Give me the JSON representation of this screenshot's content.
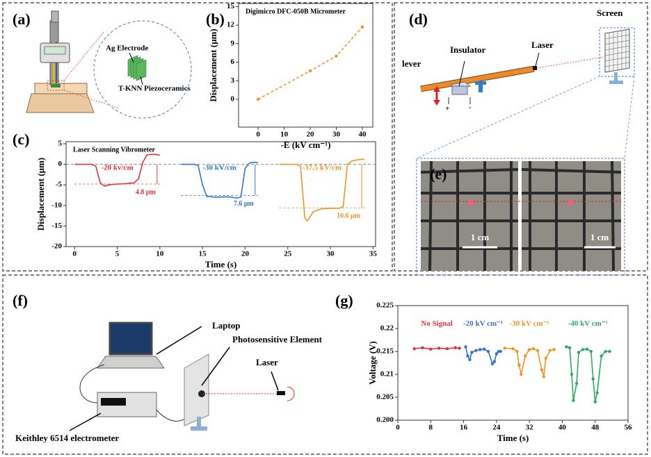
{
  "panel_labels": [
    "(a)",
    "(b)",
    "(c)",
    "(d)",
    "(e)",
    "(f)",
    "(g)"
  ],
  "labels": {
    "ag_electrode": "Ag Electrode",
    "tknn": "T-KNN Piezoceramics",
    "lever": "lever",
    "insulator": "Insulator",
    "laser_d": "Laser",
    "screen": "Screen",
    "plus": "+",
    "minus": "-",
    "scale_left": "1 cm",
    "scale_right": "1 cm",
    "laptop": "Laptop",
    "photo": "Photosensitive Element",
    "laser_f": "Laser",
    "keithley": "Keithley 6514 electrometer"
  },
  "chart_data": [
    {
      "type": "line",
      "title": "Digimicro DFC-050B Micrometer",
      "x_label": "-E (kV cm⁻¹)",
      "y_label": "Displacement (μm)",
      "x": [
        0,
        20,
        30,
        40
      ],
      "values": [
        0,
        4.6,
        7,
        11.7
      ],
      "color": "#f0922b",
      "line_style": "dashed",
      "markers": true,
      "xlim": [
        -7.5,
        44
      ],
      "xticks": [
        0,
        10,
        20,
        30,
        40
      ],
      "ylim": [
        -4.5,
        15.5
      ],
      "yticks": [
        0,
        3,
        6,
        9,
        12,
        15
      ]
    },
    {
      "type": "line",
      "title": "Laser Scanning Vibrometer",
      "x_label": "Time (s)",
      "y_label": "Displacement (μm)",
      "zero_line": true,
      "markers": false,
      "xlim": [
        -1,
        35.3
      ],
      "xticks": [
        0,
        5,
        10,
        15,
        20,
        25,
        30,
        35
      ],
      "ylim": [
        -20,
        5.5
      ],
      "yticks": [
        5,
        0,
        -5,
        -10,
        -15,
        -20
      ],
      "series": [
        {
          "name": "-20 kv/cm",
          "color": "#e8303a",
          "level": -4.8,
          "level_label": "4.8 μm",
          "x": [
            0,
            1,
            2,
            2.5,
            3,
            3.5,
            4,
            5,
            6,
            7,
            7.5,
            8,
            8.5,
            9,
            9.5,
            10
          ],
          "values": [
            0,
            0,
            0,
            -0.5,
            -4.5,
            -5.3,
            -5,
            -4.8,
            -4.7,
            -4.5,
            -3.5,
            0.5,
            2.3,
            2.4,
            2.4,
            2.2
          ]
        },
        {
          "name": "-30 kV/cm",
          "color": "#2f74cf",
          "level": -7.6,
          "level_label": "7.6 μm",
          "x": [
            12.5,
            14,
            14.5,
            15,
            15.5,
            16.5,
            18,
            19,
            19.5,
            20,
            20.5,
            21,
            21.5
          ],
          "values": [
            0,
            0,
            -0.3,
            -5,
            -7.8,
            -8,
            -7.9,
            -8.2,
            -8,
            -1,
            0.3,
            0.5,
            0.4
          ]
        },
        {
          "name": "-37.5 kV/cm",
          "color": "#f39422",
          "level": -10.6,
          "level_label": "10.6 μm",
          "x": [
            24,
            26,
            26.5,
            27,
            27.3,
            28,
            29,
            30,
            31,
            31.5,
            32,
            32.5,
            33,
            33.5,
            34
          ],
          "values": [
            0,
            0,
            -0.5,
            -13,
            -13.8,
            -11.5,
            -10.8,
            -10.7,
            -10.7,
            -10.3,
            0,
            0.8,
            1,
            1.2,
            1.2
          ]
        }
      ]
    },
    {
      "type": "line",
      "x_label": "Time (s)",
      "y_label": "Voltage (V)",
      "markers": true,
      "xlim": [
        0,
        56
      ],
      "xticks": [
        0,
        8,
        16,
        24,
        32,
        40,
        48,
        56
      ],
      "ylim": [
        0.2,
        0.225
      ],
      "yticks": [
        {
          "value": 0.2,
          "label": "0.200"
        },
        0.205,
        0.21,
        0.215,
        0.22,
        0.225
      ],
      "series": [
        {
          "name": "No Signal",
          "color": "#e8303a",
          "x": [
            4,
            6,
            8,
            10,
            12,
            14,
            15
          ],
          "values": [
            0.2156,
            0.2158,
            0.2155,
            0.2157,
            0.2156,
            0.2158,
            0.2157
          ]
        },
        {
          "name": "-20 kV cm⁻¹",
          "color": "#2f74cf",
          "x": [
            16.5,
            17,
            17.5,
            18,
            19,
            20,
            21,
            22,
            23,
            23.5,
            24,
            24.5,
            25
          ],
          "values": [
            0.216,
            0.214,
            0.2132,
            0.2148,
            0.2152,
            0.2154,
            0.2155,
            0.215,
            0.2123,
            0.2128,
            0.2145,
            0.215,
            0.215
          ]
        },
        {
          "name": "-30 kV cm⁻¹",
          "color": "#f39422",
          "x": [
            26,
            28,
            29,
            29.5,
            30,
            31,
            32,
            33,
            34,
            35,
            35.5,
            36,
            37,
            38
          ],
          "values": [
            0.2157,
            0.2156,
            0.215,
            0.212,
            0.21,
            0.214,
            0.2154,
            0.2156,
            0.2152,
            0.211,
            0.2095,
            0.2135,
            0.2152,
            0.2154
          ]
        },
        {
          "name": "-40 kV cm⁻¹",
          "color": "#2ea866",
          "x": [
            41,
            41.8,
            42.3,
            42.7,
            43.5,
            44,
            45,
            46,
            47,
            47.5,
            48,
            48.5,
            49.5,
            50.5,
            51.5
          ],
          "values": [
            0.216,
            0.2158,
            0.21,
            0.2043,
            0.208,
            0.2148,
            0.2154,
            0.2155,
            0.215,
            0.209,
            0.204,
            0.206,
            0.214,
            0.215,
            0.215
          ]
        }
      ]
    }
  ]
}
